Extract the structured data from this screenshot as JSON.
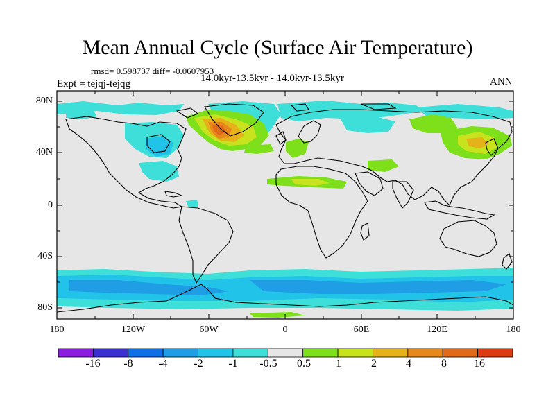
{
  "title": "Mean Annual Cycle (Surface Air Temperature)",
  "stats_line": "rmsd= 0.598737 diff= -0.0607953",
  "subtitle": "14.0kyr-13.5kyr - 14.0kyr-13.5kyr",
  "experiment_label": "Expt = tejqj-tejqg",
  "season": "ANN",
  "lat_ticks": [
    "80N",
    "40N",
    "0",
    "40S",
    "80S"
  ],
  "lon_ticks": [
    "180",
    "120W",
    "60W",
    "0",
    "60E",
    "120E",
    "180"
  ],
  "colorbar": {
    "labels": [
      "-16",
      "-8",
      "-4",
      "-2",
      "-1",
      "-0.5",
      "0.5",
      "1",
      "2",
      "4",
      "8",
      "16"
    ],
    "colors": [
      "#8a1de0",
      "#3a2fd0",
      "#0e6fe6",
      "#1f9ee6",
      "#22c3e8",
      "#3edfd8",
      "#e6e6e6",
      "#7ee01a",
      "#c8e21e",
      "#e6b21a",
      "#e6881a",
      "#e06a1a",
      "#dc3a10"
    ]
  },
  "field_colors": {
    "background": "#e6e6e6",
    "cold_1": "#3edfd8",
    "cold_2": "#22c3e8",
    "cold_3": "#1f9ee6",
    "warm_1": "#7ee01a",
    "warm_2": "#c8e21e",
    "warm_3": "#e6b21a",
    "warm_4": "#e6881a",
    "warm_5": "#e06a1a",
    "coast": "#000000"
  }
}
